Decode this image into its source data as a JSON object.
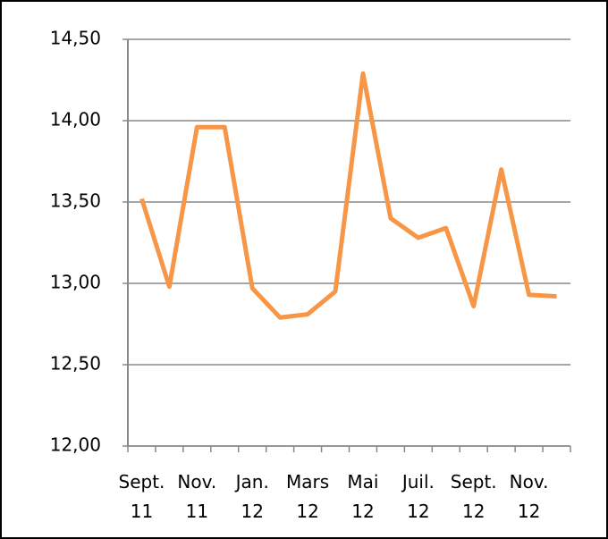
{
  "chart_data": {
    "type": "line",
    "categories": [
      "Sept. 11",
      null,
      "Nov. 11",
      null,
      "Jan. 12",
      null,
      "Mars 12",
      null,
      "Mai 12",
      null,
      "Juil. 12",
      null,
      "Sept. 12",
      null,
      "Nov. 12",
      null
    ],
    "values": [
      13.52,
      12.98,
      13.96,
      13.96,
      12.97,
      12.79,
      12.81,
      12.95,
      14.29,
      13.4,
      13.28,
      13.34,
      12.86,
      13.7,
      12.93,
      12.92
    ],
    "color": "#f79646",
    "ylim": [
      12,
      14.5
    ],
    "yticks": [
      {
        "value": 12,
        "label": "12,00"
      },
      {
        "value": 12.5,
        "label": "12,50"
      },
      {
        "value": 13,
        "label": "13,00"
      },
      {
        "value": 13.5,
        "label": "13,50"
      },
      {
        "value": 14,
        "label": "14,00"
      },
      {
        "value": 14.5,
        "label": "14,50"
      }
    ],
    "grid": true
  }
}
